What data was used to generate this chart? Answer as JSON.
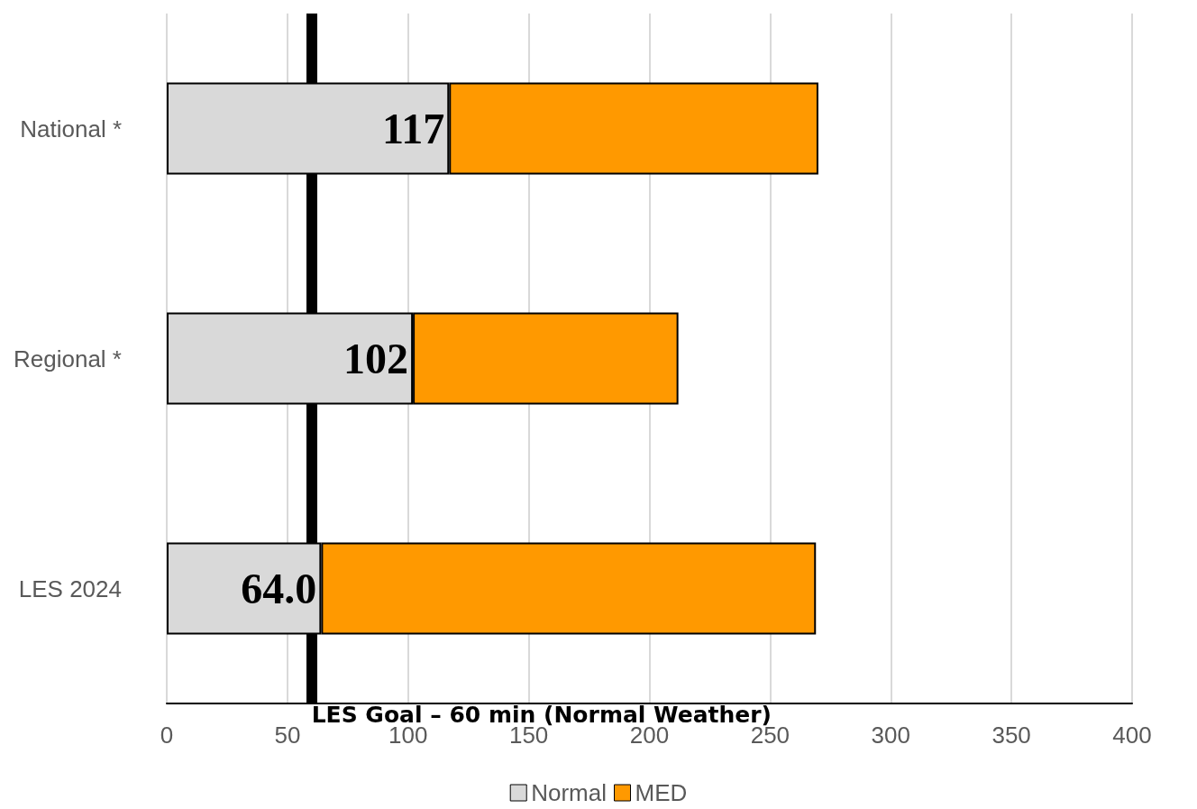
{
  "chart_data": {
    "type": "bar",
    "orientation": "horizontal",
    "stacked": true,
    "categories": [
      "National *",
      "Regional *",
      "LES 2024"
    ],
    "series": [
      {
        "name": "Normal",
        "color": "#d9d9d9",
        "values": [
          117,
          102,
          64.0
        ],
        "value_labels": [
          "117",
          "102",
          "64.0"
        ]
      },
      {
        "name": "MED",
        "color": "#ff9900",
        "values": [
          153,
          110,
          205
        ]
      }
    ],
    "xlim": [
      0,
      400
    ],
    "xticks": [
      0,
      50,
      100,
      150,
      200,
      250,
      300,
      350,
      400
    ],
    "grid": "x",
    "legend": "bottom",
    "ref_lines": [
      {
        "axis": "x",
        "value": 60,
        "label": "LES Goal – 60 min (Normal Weather)",
        "color": "#000000"
      }
    ]
  }
}
